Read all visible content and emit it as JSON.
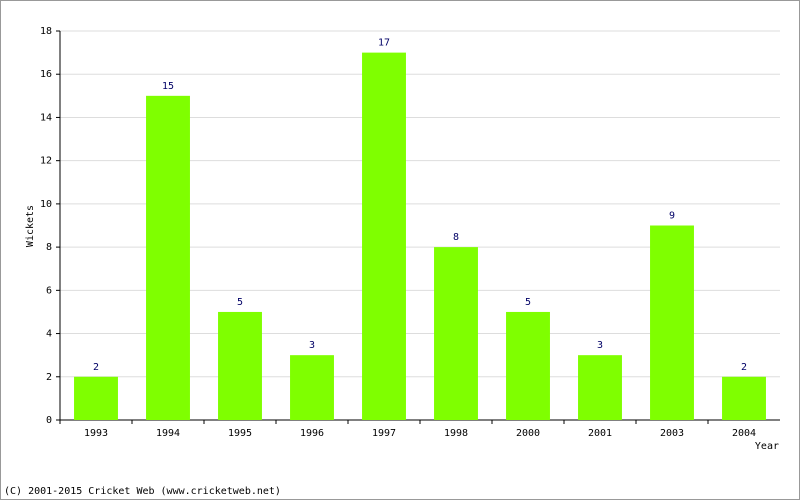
{
  "chart_data": {
    "type": "bar",
    "categories": [
      "1993",
      "1994",
      "1995",
      "1996",
      "1997",
      "1998",
      "2000",
      "2001",
      "2003",
      "2004"
    ],
    "values": [
      2,
      15,
      5,
      3,
      17,
      8,
      5,
      3,
      9,
      2
    ],
    "color": "#7fff00",
    "y_label": "Wickets",
    "x_label": "Year",
    "footer": "(C) 2001-2015 Cricket Web (www.cricketweb.net)",
    "ylim": [
      0,
      18
    ],
    "yticks": [
      0,
      2,
      4,
      6,
      8,
      10,
      12,
      14,
      16,
      18
    ],
    "grid": true
  }
}
